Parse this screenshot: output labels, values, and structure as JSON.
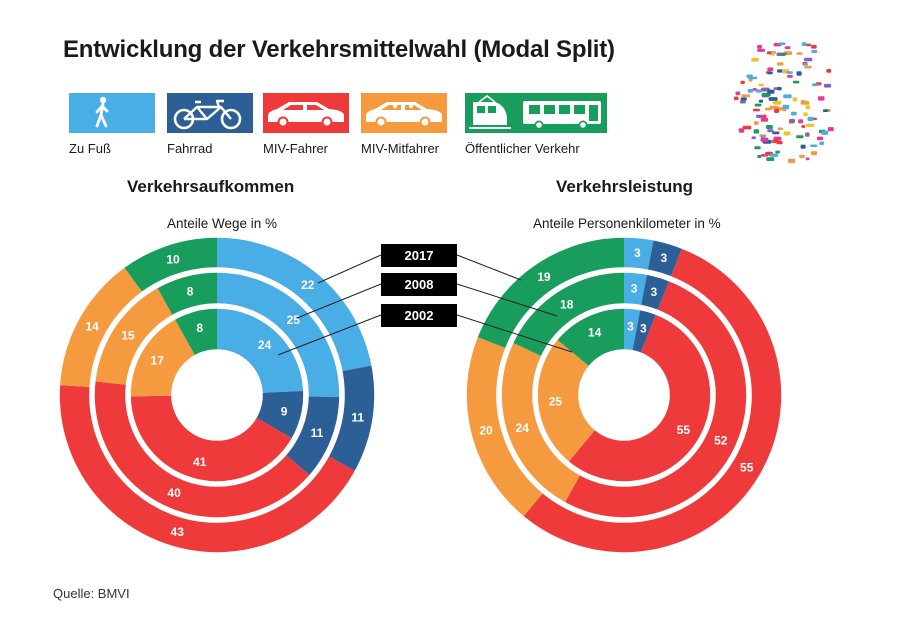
{
  "title": "Entwicklung der Verkehrsmittelwahl (Modal Split)",
  "legend": [
    {
      "label": "Zu Fuß",
      "color": "#4aaee6",
      "icon": "walking-person-icon"
    },
    {
      "label": "Fahrrad",
      "color": "#2d5f97",
      "icon": "bicycle-icon"
    },
    {
      "label": "MIV-Fahrer",
      "color": "#ee3a3a",
      "icon": "car-icon"
    },
    {
      "label": "MIV-Mitfahrer",
      "color": "#f59a3f",
      "icon": "car-passenger-icon"
    },
    {
      "label": "Öffentlicher Verkehr",
      "color": "#199d5c",
      "icon": "train-bus-icon"
    }
  ],
  "years": [
    "2017",
    "2008",
    "2002"
  ],
  "source": "Quelle: BMVI",
  "illustration": "germany-map-vehicles-icon",
  "chart_data": [
    {
      "type": "pie",
      "title": "Verkehrsaufkommen",
      "subtitle": "Anteile Wege in %",
      "categories": [
        "Zu Fuß",
        "Fahrrad",
        "MIV-Fahrer",
        "MIV-Mitfahrer",
        "Öffentlicher Verkehr"
      ],
      "series": [
        {
          "name": "2017",
          "values": [
            22,
            11,
            43,
            14,
            10
          ]
        },
        {
          "name": "2008",
          "values": [
            25,
            11,
            40,
            15,
            8
          ]
        },
        {
          "name": "2002",
          "values": [
            24,
            9,
            41,
            17,
            8
          ]
        }
      ]
    },
    {
      "type": "pie",
      "title": "Verkehrsleistung",
      "subtitle": "Anteile Personenkilometer in  %",
      "categories": [
        "Zu Fuß",
        "Fahrrad",
        "MIV-Fahrer",
        "MIV-Mitfahrer",
        "Öffentlicher Verkehr"
      ],
      "series": [
        {
          "name": "2017",
          "values": [
            3,
            3,
            55,
            20,
            19
          ]
        },
        {
          "name": "2008",
          "values": [
            3,
            3,
            52,
            24,
            18
          ]
        },
        {
          "name": "2002",
          "values": [
            3,
            3,
            55,
            25,
            14
          ]
        }
      ]
    }
  ]
}
